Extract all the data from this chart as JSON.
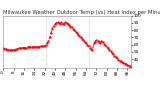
{
  "title": "Milwaukee Weather Outdoor Temp (vs) Heat Index per Minute (Last 24 Hours)",
  "bg_color": "#ffffff",
  "line_color": "#ff0000",
  "grid_color": "#aaaaaa",
  "y_values": [
    55,
    54,
    54,
    53,
    53,
    52,
    52,
    52,
    53,
    53,
    54,
    54,
    55,
    55,
    55,
    56,
    56,
    56,
    56,
    57,
    57,
    57,
    57,
    57,
    57,
    57,
    57,
    57,
    57,
    58,
    58,
    58,
    58,
    60,
    62,
    65,
    70,
    76,
    82,
    86,
    88,
    90,
    91,
    90,
    89,
    91,
    88,
    89,
    91,
    90,
    88,
    87,
    85,
    84,
    82,
    80,
    78,
    76,
    74,
    72,
    70,
    68,
    66,
    64,
    62,
    60,
    58,
    56,
    54,
    52,
    62,
    64,
    66,
    65,
    64,
    62,
    65,
    63,
    61,
    59,
    57,
    55,
    53,
    51,
    49,
    47,
    45,
    43,
    41,
    39,
    38,
    37,
    36,
    35,
    34,
    33,
    32,
    31,
    30,
    29
  ],
  "ylim": [
    28,
    100
  ],
  "yticks": [
    40,
    50,
    60,
    70,
    80,
    90,
    100
  ],
  "ytick_labels": [
    "40",
    "50",
    "60",
    "70",
    "80",
    "90",
    "100"
  ],
  "vline_positions": [
    33,
    66
  ],
  "vline_color": "#aaaaaa",
  "title_fontsize": 3.8,
  "tick_fontsize": 3.0,
  "linewidth": 0.7,
  "linestyle": "--",
  "marker": ".",
  "markersize": 1.2,
  "xtick_step": 8
}
